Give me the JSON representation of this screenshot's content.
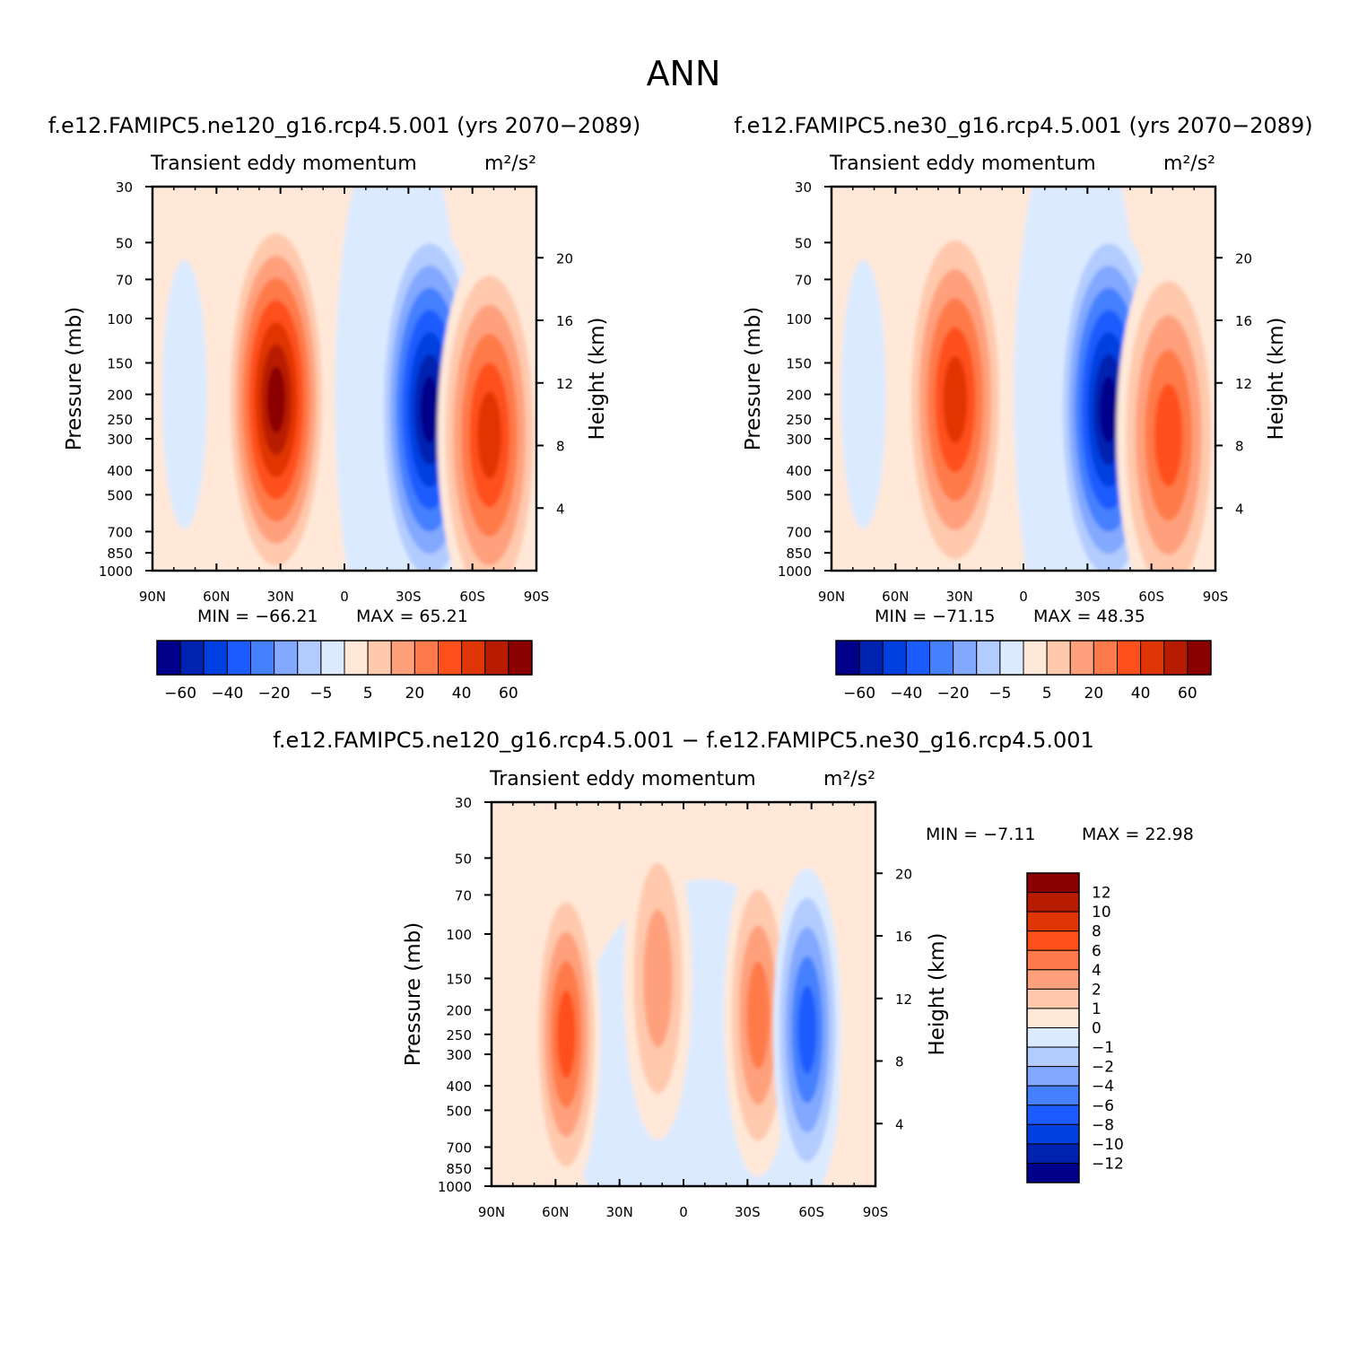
{
  "page": {
    "title": "ANN"
  },
  "panel_titles": {
    "left": "f.e12.FAMIPC5.ne120_g16.rcp4.5.001 (yrs 2070−2089)",
    "right": "f.e12.FAMIPC5.ne30_g16.rcp4.5.001 (yrs 2070−2089)",
    "diff": "f.e12.FAMIPC5.ne120_g16.rcp4.5.001 − f.e12.FAMIPC5.ne30_g16.rcp4.5.001"
  },
  "palettes": {
    "main": [
      "#00008b",
      "#0022b0",
      "#0040e0",
      "#1a5cff",
      "#4580ff",
      "#82a8ff",
      "#b3ccff",
      "#dceaff",
      "#ffe8d8",
      "#ffc9ad",
      "#ffa07d",
      "#ff7a4a",
      "#ff4f1a",
      "#e03505",
      "#b81c00",
      "#8b0000"
    ],
    "diff": [
      "#00008b",
      "#0022b0",
      "#0040e0",
      "#1a5cff",
      "#4580ff",
      "#82a8ff",
      "#b3ccff",
      "#dceaff",
      "#ffe8d8",
      "#ffc9ad",
      "#ffa07d",
      "#ff7a4a",
      "#ff4f1a",
      "#e03505",
      "#b81c00",
      "#8b0000"
    ]
  },
  "chart_data": [
    {
      "type": "heatmap",
      "id": "left",
      "subtitle": "Transient eddy momentum",
      "units": "m²/s²",
      "xlabel": "",
      "ylabel": "Pressure (mb)",
      "ylabel_right": "Height (km)",
      "x_ticks": [
        "90N",
        "60N",
        "30N",
        "0",
        "30S",
        "60S",
        "90S"
      ],
      "x_range": [
        90,
        -90
      ],
      "y_ticks": [
        30,
        50,
        70,
        100,
        150,
        200,
        250,
        300,
        400,
        500,
        700,
        850,
        1000
      ],
      "y_range": [
        1000,
        30
      ],
      "y_scale": "log",
      "height_ticks": [
        4,
        8,
        12,
        16,
        20
      ],
      "min_label": "MIN = −66.21",
      "max_label": "MAX = 65.21",
      "min": -66.21,
      "max": 65.21,
      "colorbar": {
        "orientation": "horizontal",
        "labels": [
          "−60",
          "−40",
          "−20",
          "−5",
          "5",
          "20",
          "40",
          "60"
        ]
      },
      "features": [
        {
          "lat": 32,
          "p": 210,
          "value": 65.21
        },
        {
          "lat": -40,
          "p": 230,
          "value": -66.21
        },
        {
          "lat": -68,
          "p": 290,
          "value": 45
        }
      ]
    },
    {
      "type": "heatmap",
      "id": "right",
      "subtitle": "Transient eddy momentum",
      "units": "m²/s²",
      "xlabel": "",
      "ylabel": "Pressure (mb)",
      "ylabel_right": "Height (km)",
      "x_ticks": [
        "90N",
        "60N",
        "30N",
        "0",
        "30S",
        "60S",
        "90S"
      ],
      "x_range": [
        90,
        -90
      ],
      "y_ticks": [
        30,
        50,
        70,
        100,
        150,
        200,
        250,
        300,
        400,
        500,
        700,
        850,
        1000
      ],
      "y_range": [
        1000,
        30
      ],
      "y_scale": "log",
      "height_ticks": [
        4,
        8,
        12,
        16,
        20
      ],
      "min_label": "MIN = −71.15",
      "max_label": "MAX = 48.35",
      "min": -71.15,
      "max": 48.35,
      "colorbar": {
        "orientation": "horizontal",
        "labels": [
          "−60",
          "−40",
          "−20",
          "−5",
          "5",
          "20",
          "40",
          "60"
        ]
      },
      "features": [
        {
          "lat": 32,
          "p": 210,
          "value": 48.35
        },
        {
          "lat": -40,
          "p": 230,
          "value": -71.15
        },
        {
          "lat": -68,
          "p": 290,
          "value": 38
        }
      ]
    },
    {
      "type": "heatmap",
      "id": "diff",
      "subtitle": "Transient eddy momentum",
      "units": "m²/s²",
      "xlabel": "",
      "ylabel": "Pressure (mb)",
      "ylabel_right": "Height (km)",
      "x_ticks": [
        "90N",
        "60N",
        "30N",
        "0",
        "30S",
        "60S",
        "90S"
      ],
      "x_range": [
        90,
        -90
      ],
      "y_ticks": [
        30,
        50,
        70,
        100,
        150,
        200,
        250,
        300,
        400,
        500,
        700,
        850,
        1000
      ],
      "y_range": [
        1000,
        30
      ],
      "y_scale": "log",
      "height_ticks": [
        4,
        8,
        12,
        16,
        20
      ],
      "min_label": "MIN = −7.11",
      "max_label": "MAX = 22.98",
      "min": -7.11,
      "max": 22.98,
      "colorbar": {
        "orientation": "vertical",
        "labels": [
          "12",
          "10",
          "8",
          "6",
          "4",
          "2",
          "1",
          "0",
          "−1",
          "−2",
          "−4",
          "−6",
          "−8",
          "−10",
          "−12"
        ]
      },
      "features": [
        {
          "lat": 55,
          "p": 250,
          "value": 7
        },
        {
          "lat": 12,
          "p": 150,
          "value": 4
        },
        {
          "lat": -35,
          "p": 210,
          "value": 6
        },
        {
          "lat": -58,
          "p": 240,
          "value": -7.11
        }
      ]
    }
  ]
}
